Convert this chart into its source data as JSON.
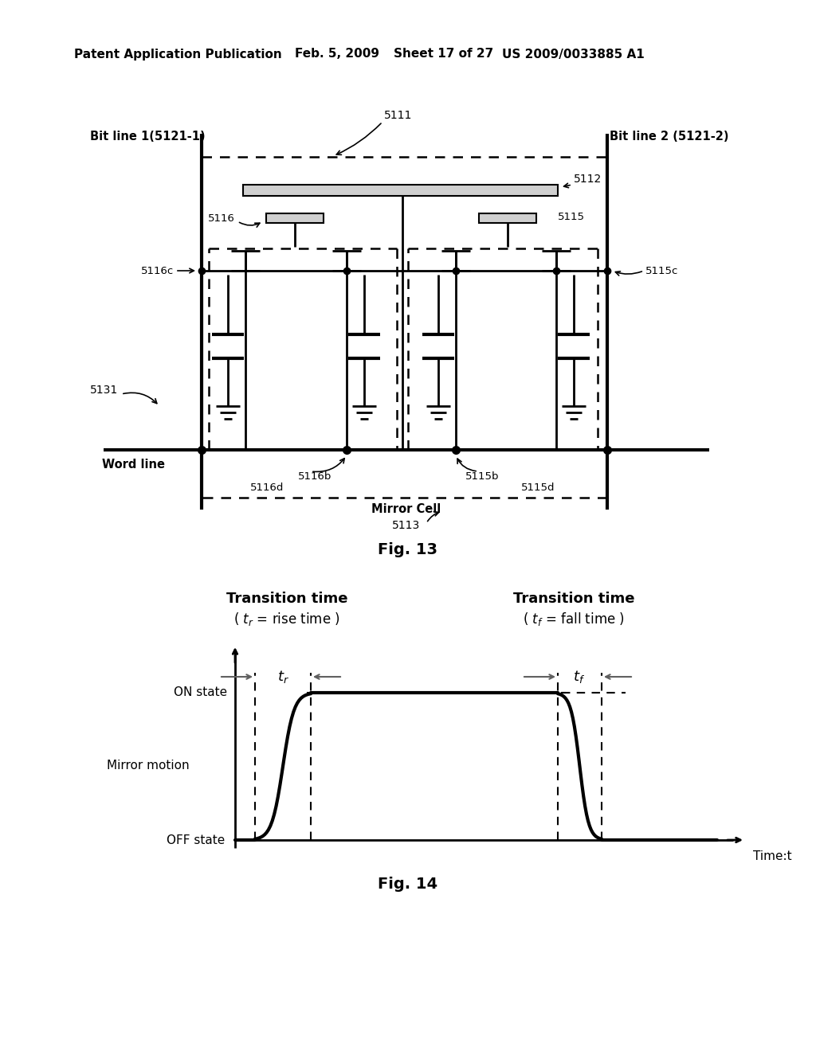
{
  "bg_color": "#ffffff",
  "header_text": "Patent Application Publication",
  "header_date": "Feb. 5, 2009",
  "header_sheet": "Sheet 17 of 27",
  "header_patent": "US 2009/0033885 A1",
  "fig13_caption": "Fig. 13",
  "fig14_caption": "Fig. 14"
}
